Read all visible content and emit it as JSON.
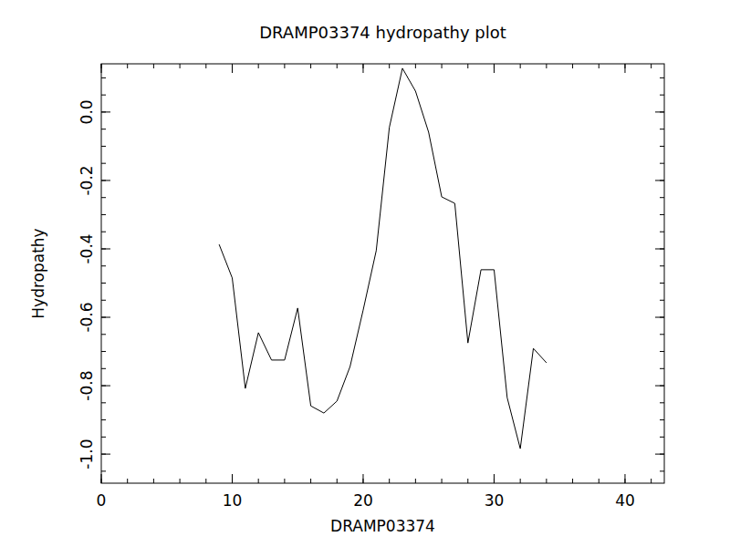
{
  "chart_data": {
    "type": "line",
    "title": "DRAMP03374 hydropathy plot",
    "x_label": "DRAMP03374",
    "y_label": "Hydropathy",
    "color": "#000000",
    "x": [
      9,
      10,
      11,
      12,
      13,
      14,
      15,
      16,
      17,
      18,
      19,
      20,
      21,
      22,
      23,
      24,
      25,
      26,
      27,
      28,
      29,
      30,
      31,
      32,
      33,
      34
    ],
    "values": [
      -0.387,
      -0.485,
      -0.808,
      -0.645,
      -0.725,
      -0.725,
      -0.573,
      -0.859,
      -0.88,
      -0.845,
      -0.744,
      -0.579,
      -0.405,
      -0.045,
      0.128,
      0.061,
      -0.059,
      -0.248,
      -0.267,
      -0.675,
      -0.461,
      -0.461,
      -0.835,
      -0.984,
      -0.691,
      -0.733
    ],
    "xlim": [
      0,
      43
    ],
    "xticks": [
      0,
      10,
      20,
      30,
      40
    ],
    "ylim": [
      -1.085,
      0.141
    ],
    "yticks": [
      {
        "value": -1,
        "label": "-1.0"
      },
      -0.8,
      -0.6,
      -0.4,
      -0.2,
      {
        "value": 0,
        "label": "0.0"
      }
    ],
    "grid": false
  }
}
